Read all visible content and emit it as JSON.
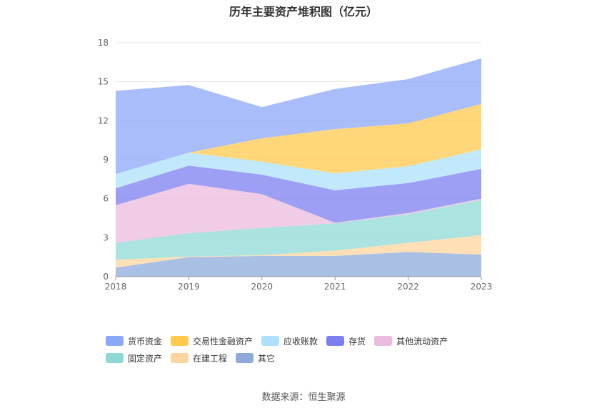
{
  "source_label": "数据来源：恒生聚源",
  "chart_data": {
    "type": "area",
    "stacked": true,
    "title": "历年主要资产堆积图（亿元）",
    "xlabel": "",
    "ylabel": "",
    "x": [
      "2018",
      "2019",
      "2020",
      "2021",
      "2022",
      "2023"
    ],
    "ylim": [
      0,
      18
    ],
    "yticks": [
      "0",
      "3",
      "6",
      "9",
      "12",
      "15",
      "18"
    ],
    "grid": true,
    "legend_position": "bottom",
    "series": [
      {
        "name": "其它",
        "color": "#8eaadb",
        "values": [
          0.7,
          1.5,
          1.6,
          1.6,
          1.9,
          1.7
        ]
      },
      {
        "name": "在建工程",
        "color": "#ffd59e",
        "values": [
          0.6,
          0.05,
          0.05,
          0.4,
          0.7,
          1.5
        ]
      },
      {
        "name": "固定资产",
        "color": "#8dd9d6",
        "values": [
          1.3,
          1.8,
          2.1,
          2.1,
          2.2,
          2.7
        ]
      },
      {
        "name": "其他流动资产",
        "color": "#ebbbdd",
        "values": [
          2.9,
          3.8,
          2.6,
          0.05,
          0.1,
          0.1
        ]
      },
      {
        "name": "存货",
        "color": "#7b7ff0",
        "values": [
          1.3,
          1.4,
          1.5,
          2.5,
          2.3,
          2.3
        ]
      },
      {
        "name": "应收账款",
        "color": "#ade0fa",
        "values": [
          1.1,
          1.0,
          1.0,
          1.3,
          1.3,
          1.5
        ]
      },
      {
        "name": "交易性金融资产",
        "color": "#ffc94d",
        "values": [
          0.0,
          0.0,
          1.8,
          3.4,
          3.3,
          3.5
        ]
      },
      {
        "name": "货币资金",
        "color": "#8ba7f7",
        "values": [
          6.4,
          5.2,
          2.4,
          3.1,
          3.4,
          3.5
        ]
      }
    ],
    "legend_order": [
      "货币资金",
      "交易性金融资产",
      "应收账款",
      "存货",
      "其他流动资产",
      "固定资产",
      "在建工程",
      "其它"
    ]
  }
}
